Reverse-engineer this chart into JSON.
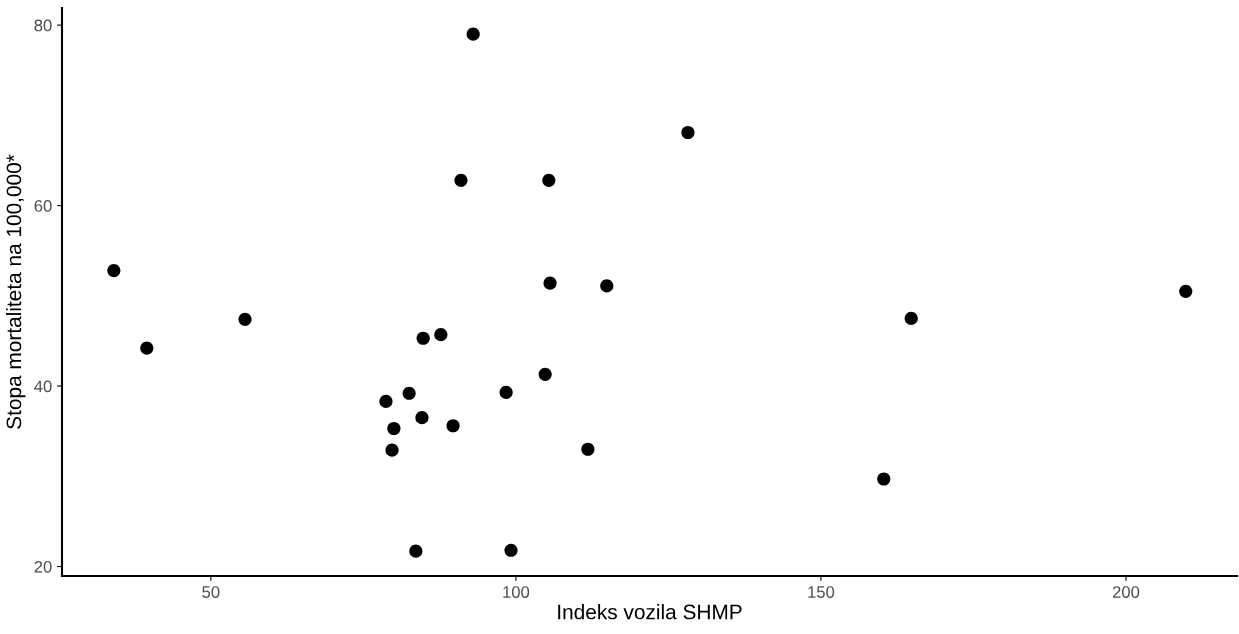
{
  "chart_data": {
    "type": "scatter",
    "xlabel": "Indeks vozila SHMP",
    "ylabel": "Stopa mortaliteta na 100,000*",
    "x": [
      34.1,
      39.5,
      55.6,
      78.7,
      82.5,
      80.0,
      79.7,
      84.8,
      84.6,
      87.7,
      89.7,
      83.6,
      91.0,
      93.0,
      98.4,
      99.2,
      104.8,
      105.4,
      105.6,
      111.8,
      114.9,
      128.2,
      160.3,
      164.8,
      209.8
    ],
    "series": [
      {
        "color": "#000000",
        "values": [
          52.8,
          44.2,
          47.4,
          38.3,
          39.2,
          35.3,
          32.9,
          45.3,
          36.5,
          45.7,
          35.6,
          21.7,
          62.8,
          79.0,
          39.3,
          21.8,
          41.3,
          62.8,
          51.4,
          33.0,
          51.1,
          68.1,
          29.7,
          47.5,
          50.5
        ]
      }
    ],
    "xlim": [
      25.6,
      218.2
    ],
    "ylim": [
      18.95,
      81.9
    ],
    "xticks": [
      50,
      100,
      150,
      200
    ],
    "yticks": [
      20,
      40,
      60,
      80
    ],
    "grid": false,
    "legend": false,
    "marker": "circle"
  }
}
